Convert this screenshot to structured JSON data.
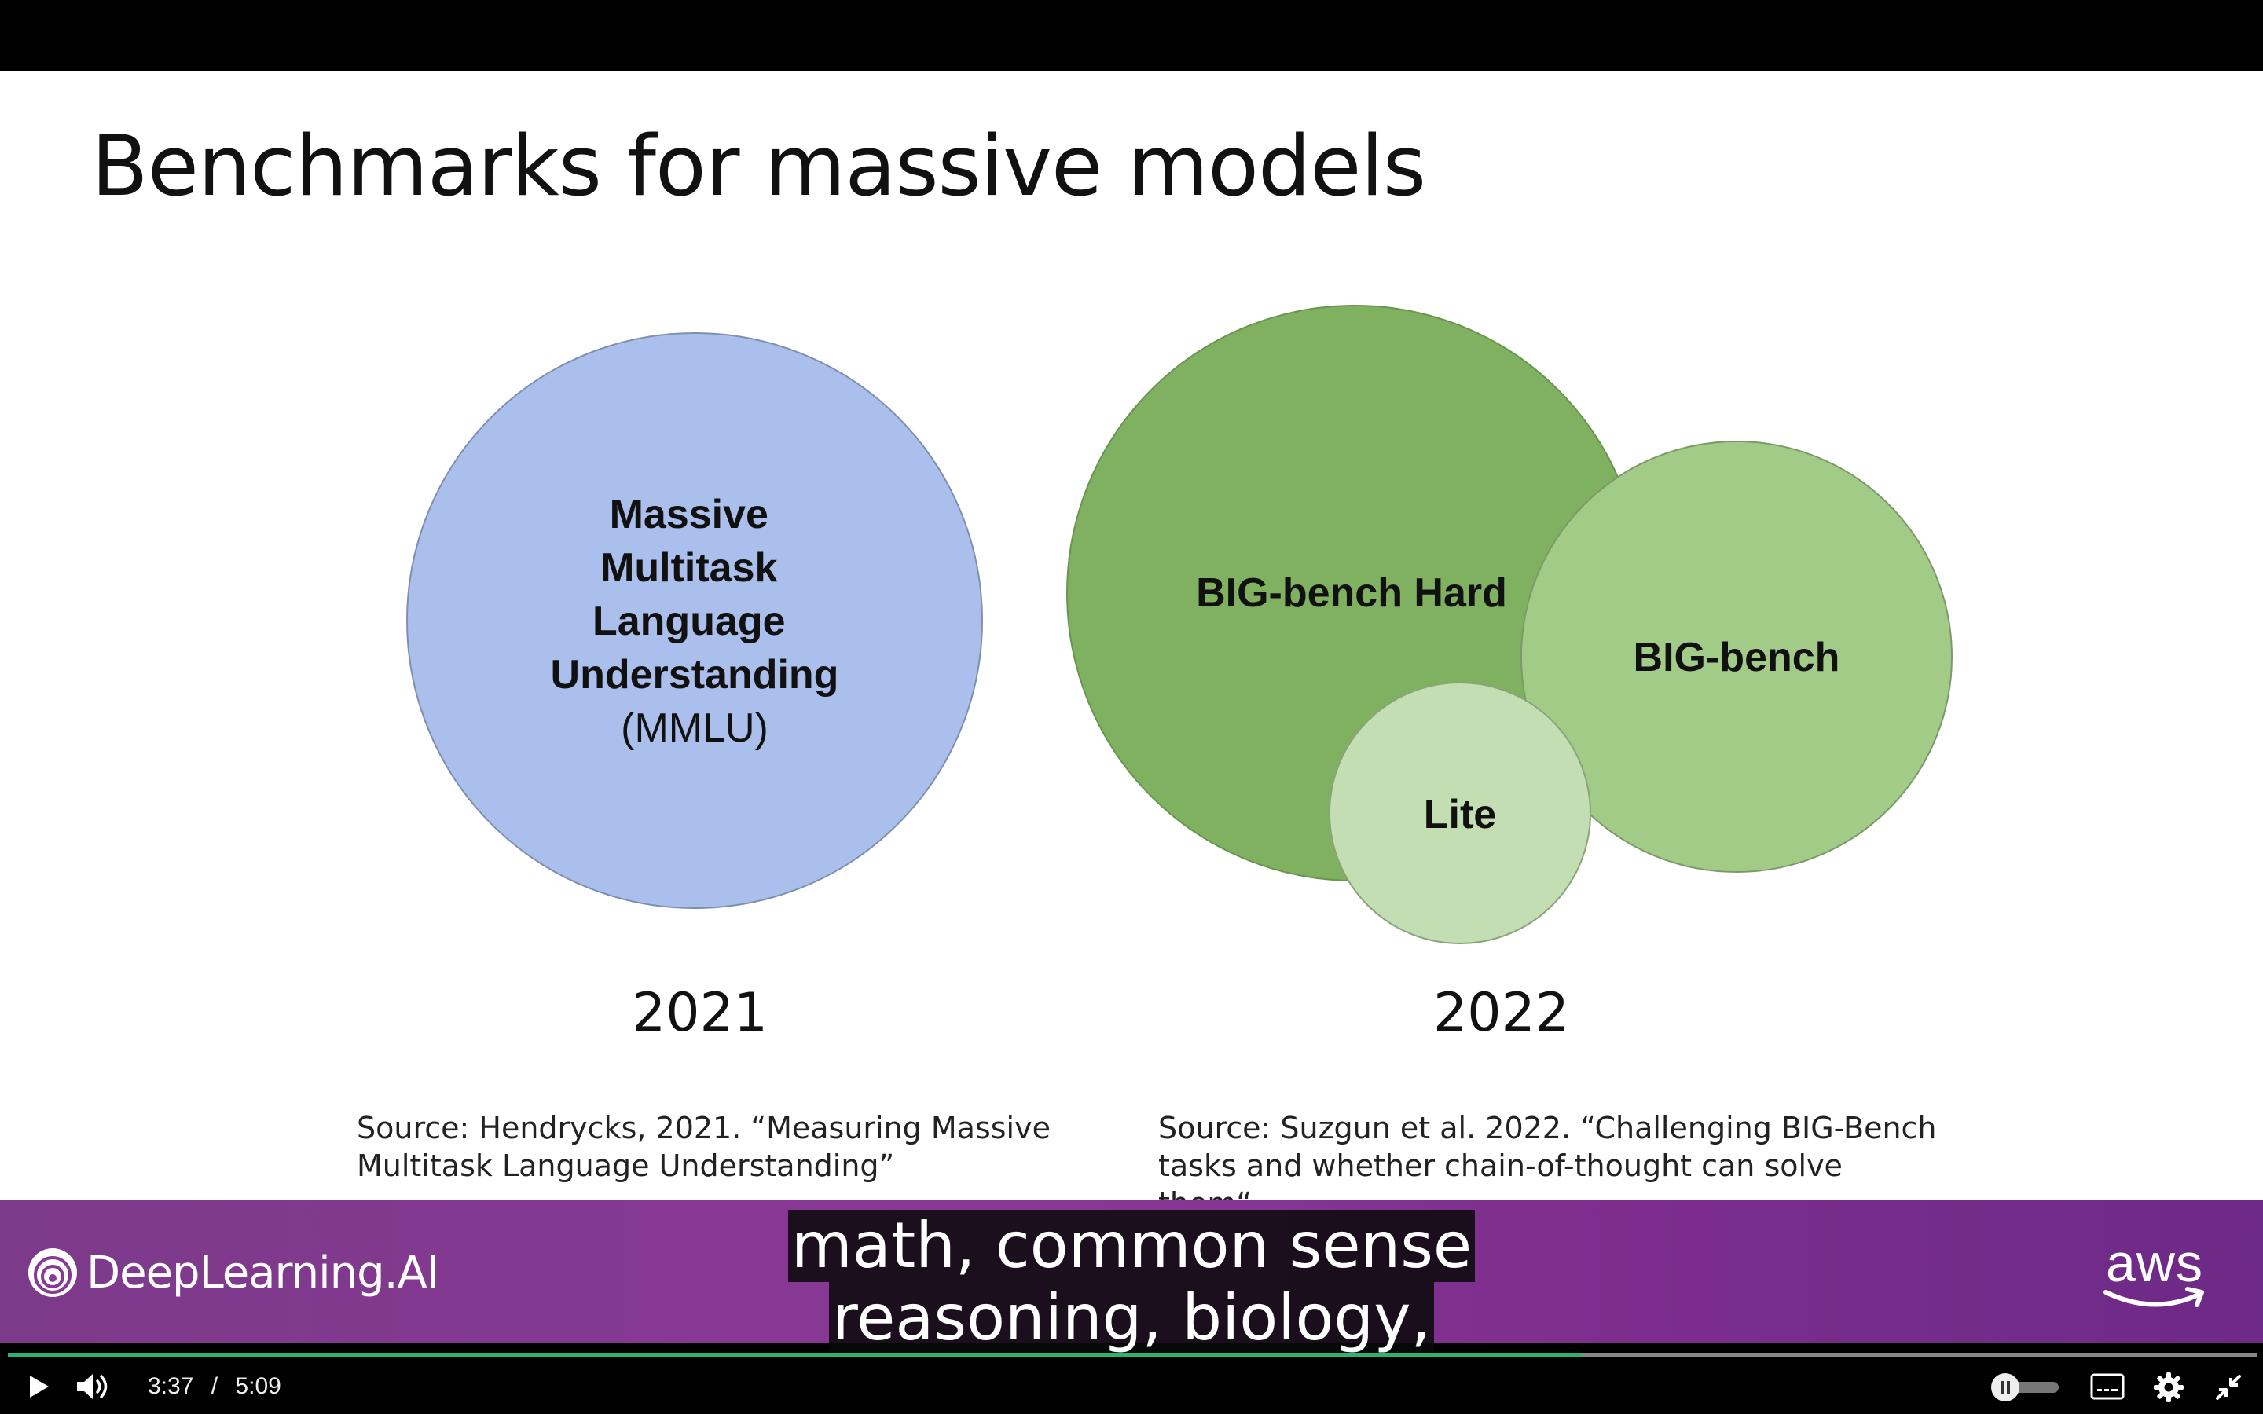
{
  "slide": {
    "title": "Benchmarks for massive models",
    "left_group": {
      "lines": [
        "Massive",
        "Multitask",
        "Language",
        "Understanding"
      ],
      "abbr": "(MMLU)",
      "year": "2021",
      "source_line1": "Source: Hendrycks, 2021. “Measuring Massive",
      "source_line2": "Multitask Language Understanding”",
      "color": "#aabfec"
    },
    "right_group": {
      "hard_label": "BIG-bench Hard",
      "bench_label": "BIG-bench",
      "lite_label": "Lite",
      "year": "2022",
      "source_line1": "Source: Suzgun et al. 2022. “Challenging BIG-Bench",
      "source_line2": "tasks and whether chain-of-thought can solve them“",
      "hard_color": "#7fb160",
      "bench_color": "#a2cb88",
      "lite_color": "#c4deb3"
    }
  },
  "banner": {
    "brand": "DeepLearning.AI",
    "partner": "aws"
  },
  "subtitles": {
    "line1": "math, common sense",
    "line2": "reasoning, biology,"
  },
  "player": {
    "current_time": "3:37",
    "separator": "/",
    "duration": "5:09",
    "progress_fraction": 0.7,
    "accent": "#2db36f",
    "icons": [
      "play-icon",
      "volume-icon",
      "autoplay-toggle-icon",
      "captions-icon",
      "settings-gear-icon",
      "exit-fullscreen-icon"
    ]
  }
}
